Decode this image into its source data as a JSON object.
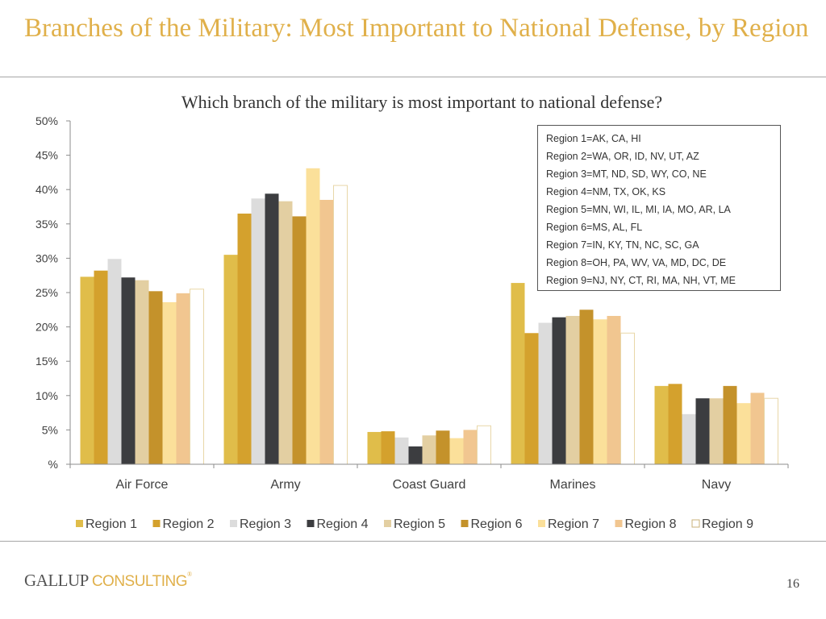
{
  "slide": {
    "title": "Branches of the Military: Most Important to National Defense, by Region",
    "page_number": "16",
    "logo": {
      "primary": "GALLUP",
      "secondary": "CONSULTING",
      "mark": "®"
    }
  },
  "region_key": [
    "Region 1=AK, CA, HI",
    "Region 2=WA, OR, ID, NV, UT, AZ",
    "Region 3=MT, ND, SD, WY, CO, NE",
    "Region 4=NM, TX, OK, KS",
    "Region 5=MN, WI, IL, MI, IA, MO, AR, LA",
    "Region 6=MS, AL, FL",
    "Region 7=IN, KY, TN, NC, SC, GA",
    "Region 8=OH, PA, WV, VA, MD, DC, DE",
    "Region 9=NJ, NY, CT, RI, MA, NH, VT, ME"
  ],
  "chart_data": {
    "type": "bar",
    "title": "Which branch of the military is most important to national defense?",
    "xlabel": "",
    "ylabel": "",
    "ylim": [
      0,
      50
    ],
    "yticks": [
      0,
      5,
      10,
      15,
      20,
      25,
      30,
      35,
      40,
      45,
      50
    ],
    "ytick_labels": [
      "%",
      "5%",
      "10%",
      "15%",
      "20%",
      "25%",
      "30%",
      "35%",
      "40%",
      "45%",
      "50%"
    ],
    "grid": false,
    "legend_position": "bottom",
    "categories": [
      "Air Force",
      "Army",
      "Coast Guard",
      "Marines",
      "Navy"
    ],
    "series": [
      {
        "name": "Region 1",
        "color": "#e0bd4a",
        "values": [
          27.3,
          30.5,
          4.7,
          26.4,
          11.4
        ]
      },
      {
        "name": "Region 2",
        "color": "#d4a12d",
        "values": [
          28.2,
          36.5,
          4.8,
          19.1,
          11.7
        ]
      },
      {
        "name": "Region 3",
        "color": "#dcdcdc",
        "values": [
          29.9,
          38.7,
          3.9,
          20.6,
          7.3
        ]
      },
      {
        "name": "Region 4",
        "color": "#3c3d40",
        "values": [
          27.2,
          39.4,
          2.6,
          21.4,
          9.6
        ]
      },
      {
        "name": "Region 5",
        "color": "#e3cfa2",
        "values": [
          26.8,
          38.3,
          4.2,
          21.6,
          9.6
        ]
      },
      {
        "name": "Region 6",
        "color": "#c4922b",
        "values": [
          25.2,
          36.1,
          4.9,
          22.5,
          11.4
        ]
      },
      {
        "name": "Region 7",
        "color": "#fbe09a",
        "values": [
          23.6,
          43.1,
          3.8,
          21.1,
          8.9
        ]
      },
      {
        "name": "Region 8",
        "color": "#f1c690",
        "values": [
          24.9,
          38.5,
          5.0,
          21.6,
          10.4
        ]
      },
      {
        "name": "Region 9",
        "color": "#ffffff",
        "values": [
          25.5,
          40.6,
          5.6,
          19.1,
          9.6
        ]
      }
    ]
  }
}
